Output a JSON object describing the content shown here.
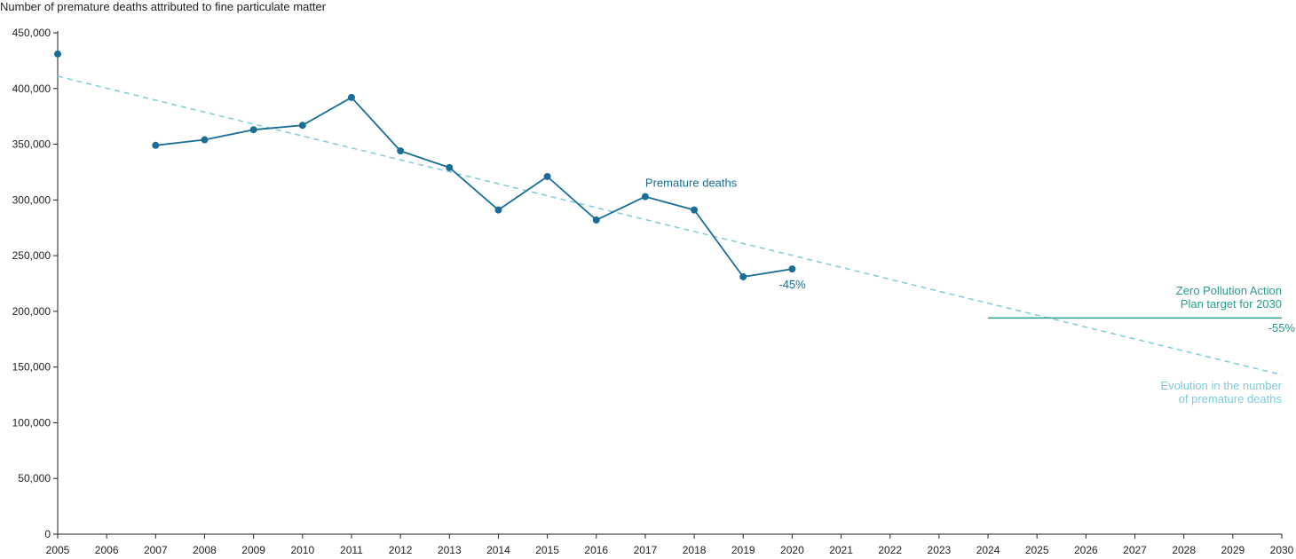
{
  "chart_data": {
    "type": "line",
    "title": "",
    "ylabel": "Number of premature deaths attributed to fine particulate matter",
    "xlabel": "",
    "xlim": [
      2005,
      2030
    ],
    "ylim": [
      0,
      450000
    ],
    "y_ticks": [
      {
        "value": 0,
        "label": "0"
      },
      {
        "value": 50000,
        "label": "50,000"
      },
      {
        "value": 100000,
        "label": "100,000"
      },
      {
        "value": 150000,
        "label": "150,000"
      },
      {
        "value": 200000,
        "label": "200,000"
      },
      {
        "value": 250000,
        "label": "250,000"
      },
      {
        "value": 300000,
        "label": "300,000"
      },
      {
        "value": 350000,
        "label": "350,000"
      },
      {
        "value": 400000,
        "label": "400,000"
      },
      {
        "value": 450000,
        "label": "450,000"
      }
    ],
    "x_ticks": [
      "2005",
      "2006",
      "2007",
      "2008",
      "2009",
      "2010",
      "2011",
      "2012",
      "2013",
      "2014",
      "2015",
      "2016",
      "2017",
      "2018",
      "2019",
      "2020",
      "2021",
      "2022",
      "2023",
      "2024",
      "2025",
      "2026",
      "2027",
      "2028",
      "2029",
      "2030"
    ],
    "grid": false,
    "legend": "none",
    "colors": {
      "series": "#1a6e96",
      "trend": "#7fcbdc",
      "target": "#2a9d8f",
      "axis": "#222222"
    },
    "base_point": {
      "x": 2005,
      "y": 431000
    },
    "series": [
      {
        "name": "Premature deaths",
        "x": [
          2007,
          2008,
          2009,
          2010,
          2011,
          2012,
          2013,
          2014,
          2015,
          2016,
          2017,
          2018,
          2019,
          2020
        ],
        "y": [
          349000,
          354000,
          363000,
          367000,
          392000,
          344000,
          329000,
          291000,
          321000,
          282000,
          303000,
          291000,
          231000,
          238000
        ]
      }
    ],
    "trend": {
      "name": "Evolution in the number of premature deaths",
      "label_lines": [
        "Evolution in the number",
        "of premature deaths"
      ],
      "start": {
        "x": 2005,
        "y": 411000
      },
      "end": {
        "x": 2030,
        "y": 143000
      }
    },
    "target": {
      "label_lines": [
        "Zero Pollution Action",
        "Plan target for 2030"
      ],
      "value": 194000,
      "x_start": 2024,
      "x_end": 2030,
      "change_label": "-55%"
    },
    "annotations": {
      "series_label": "Premature deaths",
      "change_2020": "-45%"
    }
  }
}
